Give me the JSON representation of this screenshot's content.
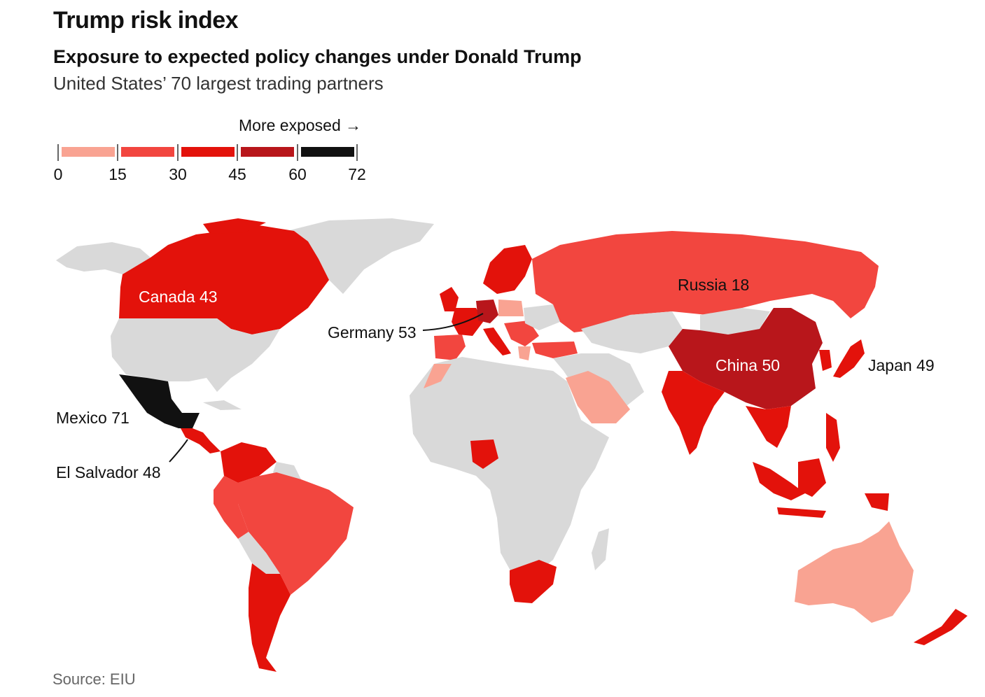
{
  "title": "Trump risk index",
  "subtitle": "Exposure to expected policy changes under Donald Trump",
  "description": "United States’ 70 largest trading partners",
  "legend": {
    "direction_label": "More exposed →",
    "ticks": [
      "0",
      "15",
      "30",
      "45",
      "60",
      "72"
    ],
    "bins": [
      {
        "range": "0–15",
        "color": "#f9a392"
      },
      {
        "range": "15–30",
        "color": "#f2463f"
      },
      {
        "range": "30–45",
        "color": "#e3120b"
      },
      {
        "range": "45–60",
        "color": "#b8161b"
      },
      {
        "range": "60–72",
        "color": "#111111"
      }
    ]
  },
  "map_colors": {
    "no_data": "#d9d9d9",
    "bin1": "#f9a392",
    "bin2": "#f2463f",
    "bin3": "#e3120b",
    "bin4": "#b8161b",
    "bin5": "#111111"
  },
  "labels": {
    "canada": "Canada 43",
    "russia": "Russia 18",
    "germany": "Germany 53",
    "china": "China 50",
    "japan": "Japan 49",
    "mexico": "Mexico 71",
    "el_salvador": "El Salvador 48"
  },
  "countries": [
    {
      "name": "Canada",
      "score": 43
    },
    {
      "name": "Russia",
      "score": 18
    },
    {
      "name": "Germany",
      "score": 53
    },
    {
      "name": "China",
      "score": 50
    },
    {
      "name": "Japan",
      "score": 49
    },
    {
      "name": "Mexico",
      "score": 71
    },
    {
      "name": "El Salvador",
      "score": 48
    }
  ],
  "source": "Source: EIU"
}
